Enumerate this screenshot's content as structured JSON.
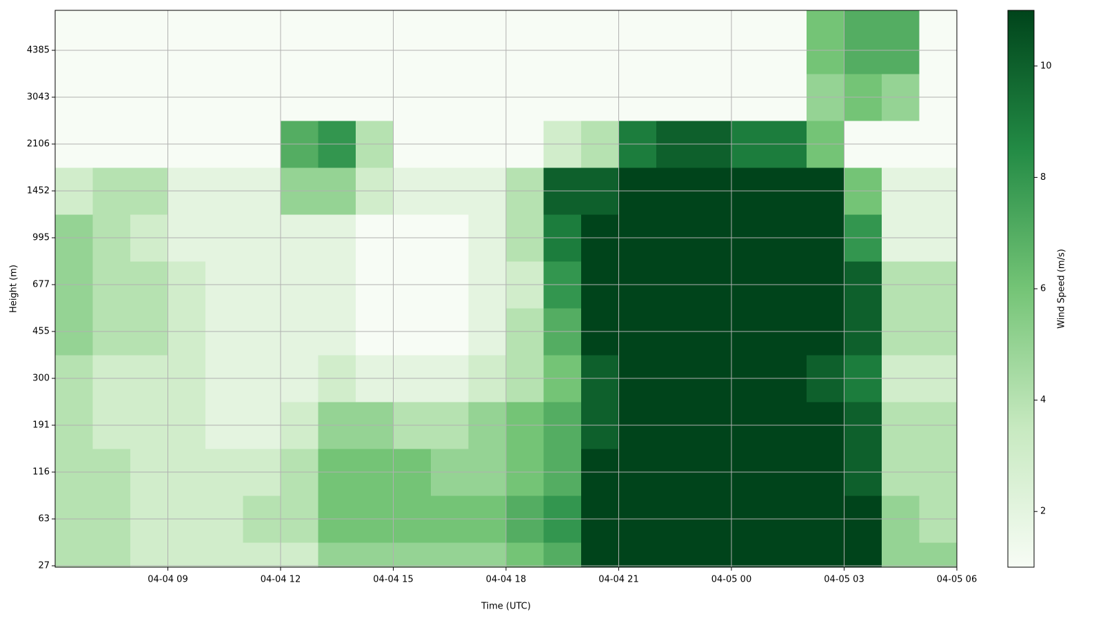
{
  "chart_data": {
    "type": "heatmap",
    "xlabel": "Time (UTC)",
    "ylabel": "Height (m)",
    "colorbar_label": "Wind Speed (m/s)",
    "xlim": [
      "04-04 06",
      "04-05 06"
    ],
    "xticks": [
      "04-04 09",
      "04-04 12",
      "04-04 15",
      "04-04 18",
      "04-04 21",
      "04-05 00",
      "04-05 03",
      "04-05 06"
    ],
    "yticks": [
      27,
      63,
      116,
      191,
      300,
      455,
      677,
      995,
      1452,
      2106,
      3043,
      4385
    ],
    "x": [
      "04-04 06",
      "04-04 07",
      "04-04 08",
      "04-04 09",
      "04-04 10",
      "04-04 11",
      "04-04 12",
      "04-04 13",
      "04-04 14",
      "04-04 15",
      "04-04 16",
      "04-04 17",
      "04-04 18",
      "04-04 19",
      "04-04 20",
      "04-04 21",
      "04-04 22",
      "04-04 23",
      "04-05 00",
      "04-05 01",
      "04-05 02",
      "04-05 03",
      "04-05 04",
      "04-05 05"
    ],
    "y": [
      27,
      63,
      116,
      191,
      300,
      455,
      677,
      995,
      1452,
      2106,
      3043,
      4385
    ],
    "z": [
      [
        4,
        4,
        3,
        3,
        3,
        3,
        3,
        5,
        5,
        5,
        5,
        5,
        6,
        7,
        11,
        11,
        11,
        11,
        11,
        11,
        11,
        11,
        5,
        5
      ],
      [
        4,
        4,
        3,
        3,
        3,
        4,
        4,
        6,
        6,
        6,
        6,
        6,
        7,
        8,
        11,
        11,
        11,
        11,
        11,
        11,
        11,
        11,
        5,
        4
      ],
      [
        4,
        4,
        3,
        3,
        3,
        3,
        4,
        6,
        6,
        6,
        5,
        5,
        6,
        7,
        11,
        11,
        11,
        11,
        11,
        11,
        11,
        10,
        4,
        4
      ],
      [
        4,
        3,
        3,
        3,
        2,
        2,
        3,
        5,
        5,
        4,
        4,
        5,
        6,
        7,
        10,
        11,
        11,
        11,
        11,
        11,
        11,
        10,
        4,
        4
      ],
      [
        4,
        3,
        3,
        3,
        2,
        2,
        2,
        3,
        2,
        2,
        2,
        3,
        4,
        6,
        10,
        11,
        11,
        11,
        11,
        11,
        10,
        9,
        3,
        3
      ],
      [
        5,
        4,
        4,
        3,
        2,
        2,
        2,
        2,
        1,
        1,
        1,
        2,
        4,
        7,
        11,
        11,
        11,
        11,
        11,
        11,
        11,
        10,
        4,
        4
      ],
      [
        5,
        4,
        4,
        3,
        2,
        2,
        2,
        2,
        1,
        1,
        1,
        2,
        3,
        8,
        11,
        11,
        11,
        11,
        11,
        11,
        11,
        10,
        4,
        4
      ],
      [
        5,
        4,
        3,
        2,
        2,
        2,
        2,
        2,
        1,
        1,
        1,
        2,
        4,
        9,
        11,
        11,
        11,
        11,
        11,
        11,
        11,
        8,
        2,
        2
      ],
      [
        3,
        4,
        4,
        2,
        2,
        2,
        5,
        5,
        3,
        2,
        2,
        2,
        4,
        10,
        10,
        11,
        11,
        11,
        11,
        11,
        11,
        6,
        2,
        2
      ],
      [
        1,
        1,
        1,
        1,
        1,
        1,
        7,
        8,
        4,
        1,
        1,
        1,
        1,
        3,
        4,
        9,
        10,
        10,
        9,
        9,
        6,
        1,
        1,
        1
      ],
      [
        1,
        1,
        1,
        1,
        1,
        1,
        1,
        1,
        1,
        1,
        1,
        1,
        1,
        1,
        1,
        1,
        1,
        1,
        1,
        1,
        5,
        6,
        5,
        1
      ],
      [
        1,
        1,
        1,
        1,
        1,
        1,
        1,
        1,
        1,
        1,
        1,
        1,
        1,
        1,
        1,
        1,
        1,
        1,
        1,
        1,
        6,
        7,
        7,
        1
      ]
    ],
    "colormap": "Greens",
    "clim": [
      1,
      11
    ],
    "colorbar_ticks": [
      2,
      4,
      6,
      8,
      10
    ],
    "grid": true
  }
}
